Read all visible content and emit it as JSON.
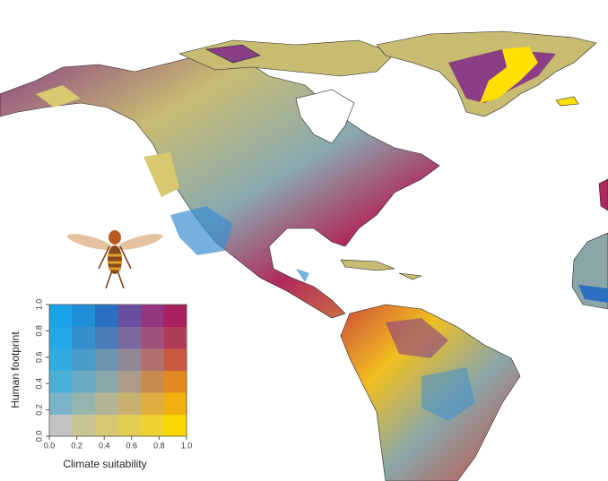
{
  "legend": {
    "x_label": "Climate suitability",
    "y_label": "Human footprint",
    "xticks": [
      {
        "value": 0,
        "label": "0.0"
      },
      {
        "value": 0.2,
        "label": "0.2"
      },
      {
        "value": 0.4,
        "label": "0.4"
      },
      {
        "value": 0.6,
        "label": "0.6"
      },
      {
        "value": 0.8,
        "label": "0.8"
      },
      {
        "value": 1,
        "label": "1.0"
      }
    ],
    "yticks": [
      {
        "value": 0,
        "label": "0.0"
      },
      {
        "value": 0.2,
        "label": "0.2"
      },
      {
        "value": 0.4,
        "label": "0.4"
      },
      {
        "value": 0.6,
        "label": "0.6"
      },
      {
        "value": 0.8,
        "label": "0.8"
      },
      {
        "value": 1,
        "label": "1.0"
      }
    ],
    "xlim": [
      0,
      1
    ],
    "ylim": [
      0,
      1
    ],
    "colors": [
      [
        "#c2c2c0",
        "#cac594",
        "#d6c872",
        "#e2cc52",
        "#eed232",
        "#f8d800"
      ],
      [
        "#7ab4c8",
        "#98b4b0",
        "#b4b494",
        "#c8b070",
        "#dcae40",
        "#f0b010"
      ],
      [
        "#4ab0d8",
        "#6aaac4",
        "#8aa6a8",
        "#aa9c88",
        "#c88a50",
        "#e08a20"
      ],
      [
        "#30ace0",
        "#4a9cc8",
        "#6a94b0",
        "#908a98",
        "#b07070",
        "#c85a40"
      ],
      [
        "#22a8e6",
        "#3590cc",
        "#4a7cb8",
        "#7a6aa0",
        "#a0527a",
        "#b03c5a"
      ],
      [
        "#1aa3e8",
        "#1f8fd8",
        "#2a6fc0",
        "#6a4fa0",
        "#93357f",
        "#a8205e"
      ]
    ]
  }
}
